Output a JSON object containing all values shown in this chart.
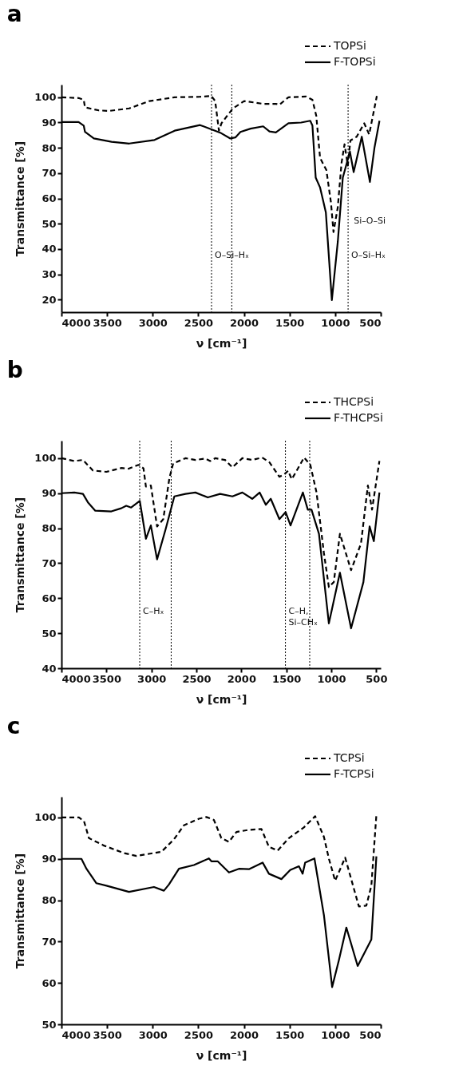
{
  "chart_data": [
    {
      "type": "line",
      "title": "a",
      "xlabel": "ν [cm⁻¹]",
      "ylabel": "Transmittance [%]",
      "xlim": [
        4000,
        500
      ],
      "ylim": [
        15,
        105
      ],
      "xticks": [
        4000,
        3500,
        3000,
        2500,
        2000,
        1500,
        1000,
        500
      ],
      "yticks": [
        20,
        30,
        40,
        50,
        60,
        70,
        80,
        90,
        100
      ],
      "legend": "top right",
      "series": [
        {
          "name": "TOPSi",
          "color": "#000000",
          "line_style": "dashed",
          "x": [
            4000,
            3812,
            3756,
            3742,
            3590,
            3479,
            3257,
            3036,
            2759,
            2481,
            2357,
            2315,
            2274,
            2246,
            2204,
            2121,
            1997,
            1789,
            1650,
            1609,
            1512,
            1318,
            1249,
            1207,
            1165,
            1096,
            1046,
            1018,
            971,
            930,
            897,
            861,
            833,
            764,
            681,
            627,
            543
          ],
          "values": [
            100,
            99.7,
            99,
            96,
            94.8,
            94.6,
            95.6,
            98.5,
            100,
            100.2,
            100.5,
            98.5,
            86.8,
            89.7,
            91.7,
            95.6,
            98.5,
            97.4,
            97.4,
            97.1,
            100,
            100.3,
            99,
            92.7,
            76,
            71.2,
            58.4,
            46.7,
            56.5,
            74,
            81.4,
            73,
            82.9,
            84.4,
            89.7,
            85.3,
            100.5
          ]
        },
        {
          "name": "F-TOPSi",
          "color": "#000000",
          "line_style": "solid",
          "x": [
            4000,
            3812,
            3756,
            3742,
            3645,
            3451,
            3257,
            2980,
            2759,
            2481,
            2260,
            2149,
            2094,
            2038,
            1927,
            1789,
            1720,
            1650,
            1512,
            1373,
            1273,
            1249,
            1213,
            1165,
            1102,
            1036,
            971,
            916,
            838,
            797,
            708,
            619,
            569,
            514
          ],
          "values": [
            90.2,
            90.2,
            88.8,
            86.3,
            83.7,
            82.4,
            81.7,
            83.1,
            86.8,
            89,
            86,
            83.7,
            84.1,
            86.3,
            87.6,
            88.5,
            86.5,
            86.1,
            89.7,
            90,
            90.7,
            88.8,
            68.2,
            64.3,
            54.5,
            19.8,
            42.8,
            68.2,
            78.5,
            70.4,
            84.4,
            66.5,
            80,
            90.7
          ]
        }
      ],
      "ref_lines": [
        {
          "axis": "x",
          "value": 2355,
          "label": "O–Si–Hₓ",
          "line_style": "dotted"
        },
        {
          "axis": "x",
          "value": 2133,
          "line_style": "dotted"
        },
        {
          "axis": "x",
          "value": 858,
          "label": "O–Si–Hₓ",
          "line_style": "dotted"
        }
      ],
      "annotations": [
        "Si–O–Si"
      ]
    },
    {
      "type": "line",
      "title": "b",
      "xlabel": "ν [cm⁻¹]",
      "ylabel": "Transmittance [%]",
      "xlim": [
        4000,
        450
      ],
      "ylim": [
        40,
        105
      ],
      "xticks": [
        4000,
        3500,
        3000,
        2500,
        2000,
        1500,
        1000,
        500
      ],
      "yticks": [
        40,
        50,
        60,
        70,
        80,
        90,
        100
      ],
      "legend": "top right",
      "series": [
        {
          "name": "THCPSi",
          "color": "#000000",
          "line_style": "dashed",
          "x": [
            4000,
            3857,
            3761,
            3651,
            3500,
            3335,
            3253,
            3143,
            3088,
            3061,
            3006,
            2937,
            2868,
            2800,
            2758,
            2621,
            2511,
            2401,
            2346,
            2291,
            2181,
            2099,
            1989,
            1879,
            1769,
            1687,
            1577,
            1522,
            1481,
            1439,
            1302,
            1233,
            1164,
            1082,
            1027,
            972,
            904,
            780,
            670,
            593,
            547,
            465
          ],
          "values": [
            100,
            99.2,
            99.5,
            96.5,
            96.1,
            97.2,
            97,
            98.1,
            97.1,
            91.9,
            92.2,
            80.5,
            82.6,
            94.3,
            98.5,
            100,
            99.5,
            99.9,
            99.2,
            100,
            99.5,
            97.4,
            100,
            99.5,
            100.2,
            98.8,
            94.7,
            95.4,
            96.4,
            94,
            100.2,
            98.1,
            90.2,
            72.9,
            63.2,
            64.6,
            78.4,
            68,
            75.6,
            92.2,
            85.3,
            99.2
          ]
        },
        {
          "name": "F-THCPSi",
          "color": "#000000",
          "line_style": "solid",
          "x": [
            4000,
            3857,
            3761,
            3706,
            3624,
            3445,
            3335,
            3280,
            3225,
            3129,
            3061,
            3006,
            2937,
            2841,
            2745,
            2621,
            2511,
            2373,
            2236,
            2099,
            1989,
            1879,
            1796,
            1728,
            1673,
            1577,
            1508,
            1453,
            1316,
            1261,
            1220,
            1137,
            1027,
            904,
            780,
            643,
            574,
            527,
            465
          ],
          "values": [
            90,
            90.2,
            89.8,
            87.4,
            85,
            84.8,
            85.7,
            86.4,
            85.9,
            87.8,
            77,
            80.8,
            71.1,
            79.8,
            89.1,
            89.8,
            90.2,
            88.8,
            89.8,
            89.1,
            90.2,
            88.4,
            90.2,
            86.7,
            88.4,
            82.6,
            84.6,
            80.8,
            90.2,
            85.3,
            85.3,
            78.4,
            52.8,
            67.3,
            51.4,
            64.6,
            80.5,
            76.3,
            90.2
          ]
        }
      ],
      "ref_lines": [
        {
          "axis": "x",
          "value": 3130,
          "label": "C–Hₓ",
          "line_style": "dotted"
        },
        {
          "axis": "x",
          "value": 2780,
          "line_style": "dotted"
        },
        {
          "axis": "x",
          "value": 1510,
          "label": "C–H,\nSi–CHₓ",
          "line_style": "dotted"
        },
        {
          "axis": "x",
          "value": 1240,
          "line_style": "dotted"
        }
      ]
    },
    {
      "type": "line",
      "title": "c",
      "xlabel": "ν [cm⁻¹]",
      "ylabel": "Transmittance [%]",
      "xlim": [
        4000,
        500
      ],
      "ylim": [
        50,
        105
      ],
      "xticks": [
        4000,
        3500,
        3000,
        2500,
        2000,
        1500,
        1000,
        500
      ],
      "yticks": [
        50,
        60,
        70,
        80,
        90,
        100
      ],
      "legend": "top right",
      "series": [
        {
          "name": "TCPSi",
          "color": "#000000",
          "line_style": "dashed",
          "x": [
            4000,
            3808,
            3753,
            3699,
            3534,
            3315,
            3178,
            2904,
            2767,
            2658,
            2493,
            2411,
            2329,
            2247,
            2164,
            2082,
            1945,
            1808,
            1726,
            1630,
            1507,
            1342,
            1219,
            1123,
            1068,
            1000,
            890,
            740,
            658,
            603,
            548
          ],
          "values": [
            100,
            100,
            99.1,
            95,
            93.2,
            91.4,
            90.7,
            91.7,
            94.7,
            98.1,
            99.7,
            100.1,
            99.4,
            95,
            94.1,
            96.5,
            97,
            97.2,
            92.9,
            92,
            95,
            97.6,
            100.3,
            95.3,
            90,
            84.7,
            90.3,
            78.5,
            78.7,
            83.5,
            100.6
          ]
        },
        {
          "name": "F-TCPSi",
          "color": "#000000",
          "line_style": "solid",
          "x": [
            4000,
            3781,
            3726,
            3617,
            3507,
            3260,
            2986,
            2877,
            2822,
            2712,
            2548,
            2384,
            2356,
            2288,
            2164,
            2055,
            1945,
            1795,
            1726,
            1589,
            1493,
            1397,
            1356,
            1329,
            1227,
            1123,
            1033,
            959,
            877,
            753,
            603,
            548
          ],
          "values": [
            90,
            90,
            87.6,
            84.1,
            83.5,
            82,
            83.2,
            82.3,
            83.8,
            87.6,
            88.5,
            90.1,
            89.4,
            89.4,
            86.7,
            87.6,
            87.5,
            89.1,
            86.4,
            85.1,
            87.3,
            88.2,
            86.4,
            89.1,
            90.1,
            76.4,
            59,
            65.5,
            73.4,
            64.1,
            70.5,
            90.6
          ]
        }
      ]
    }
  ]
}
